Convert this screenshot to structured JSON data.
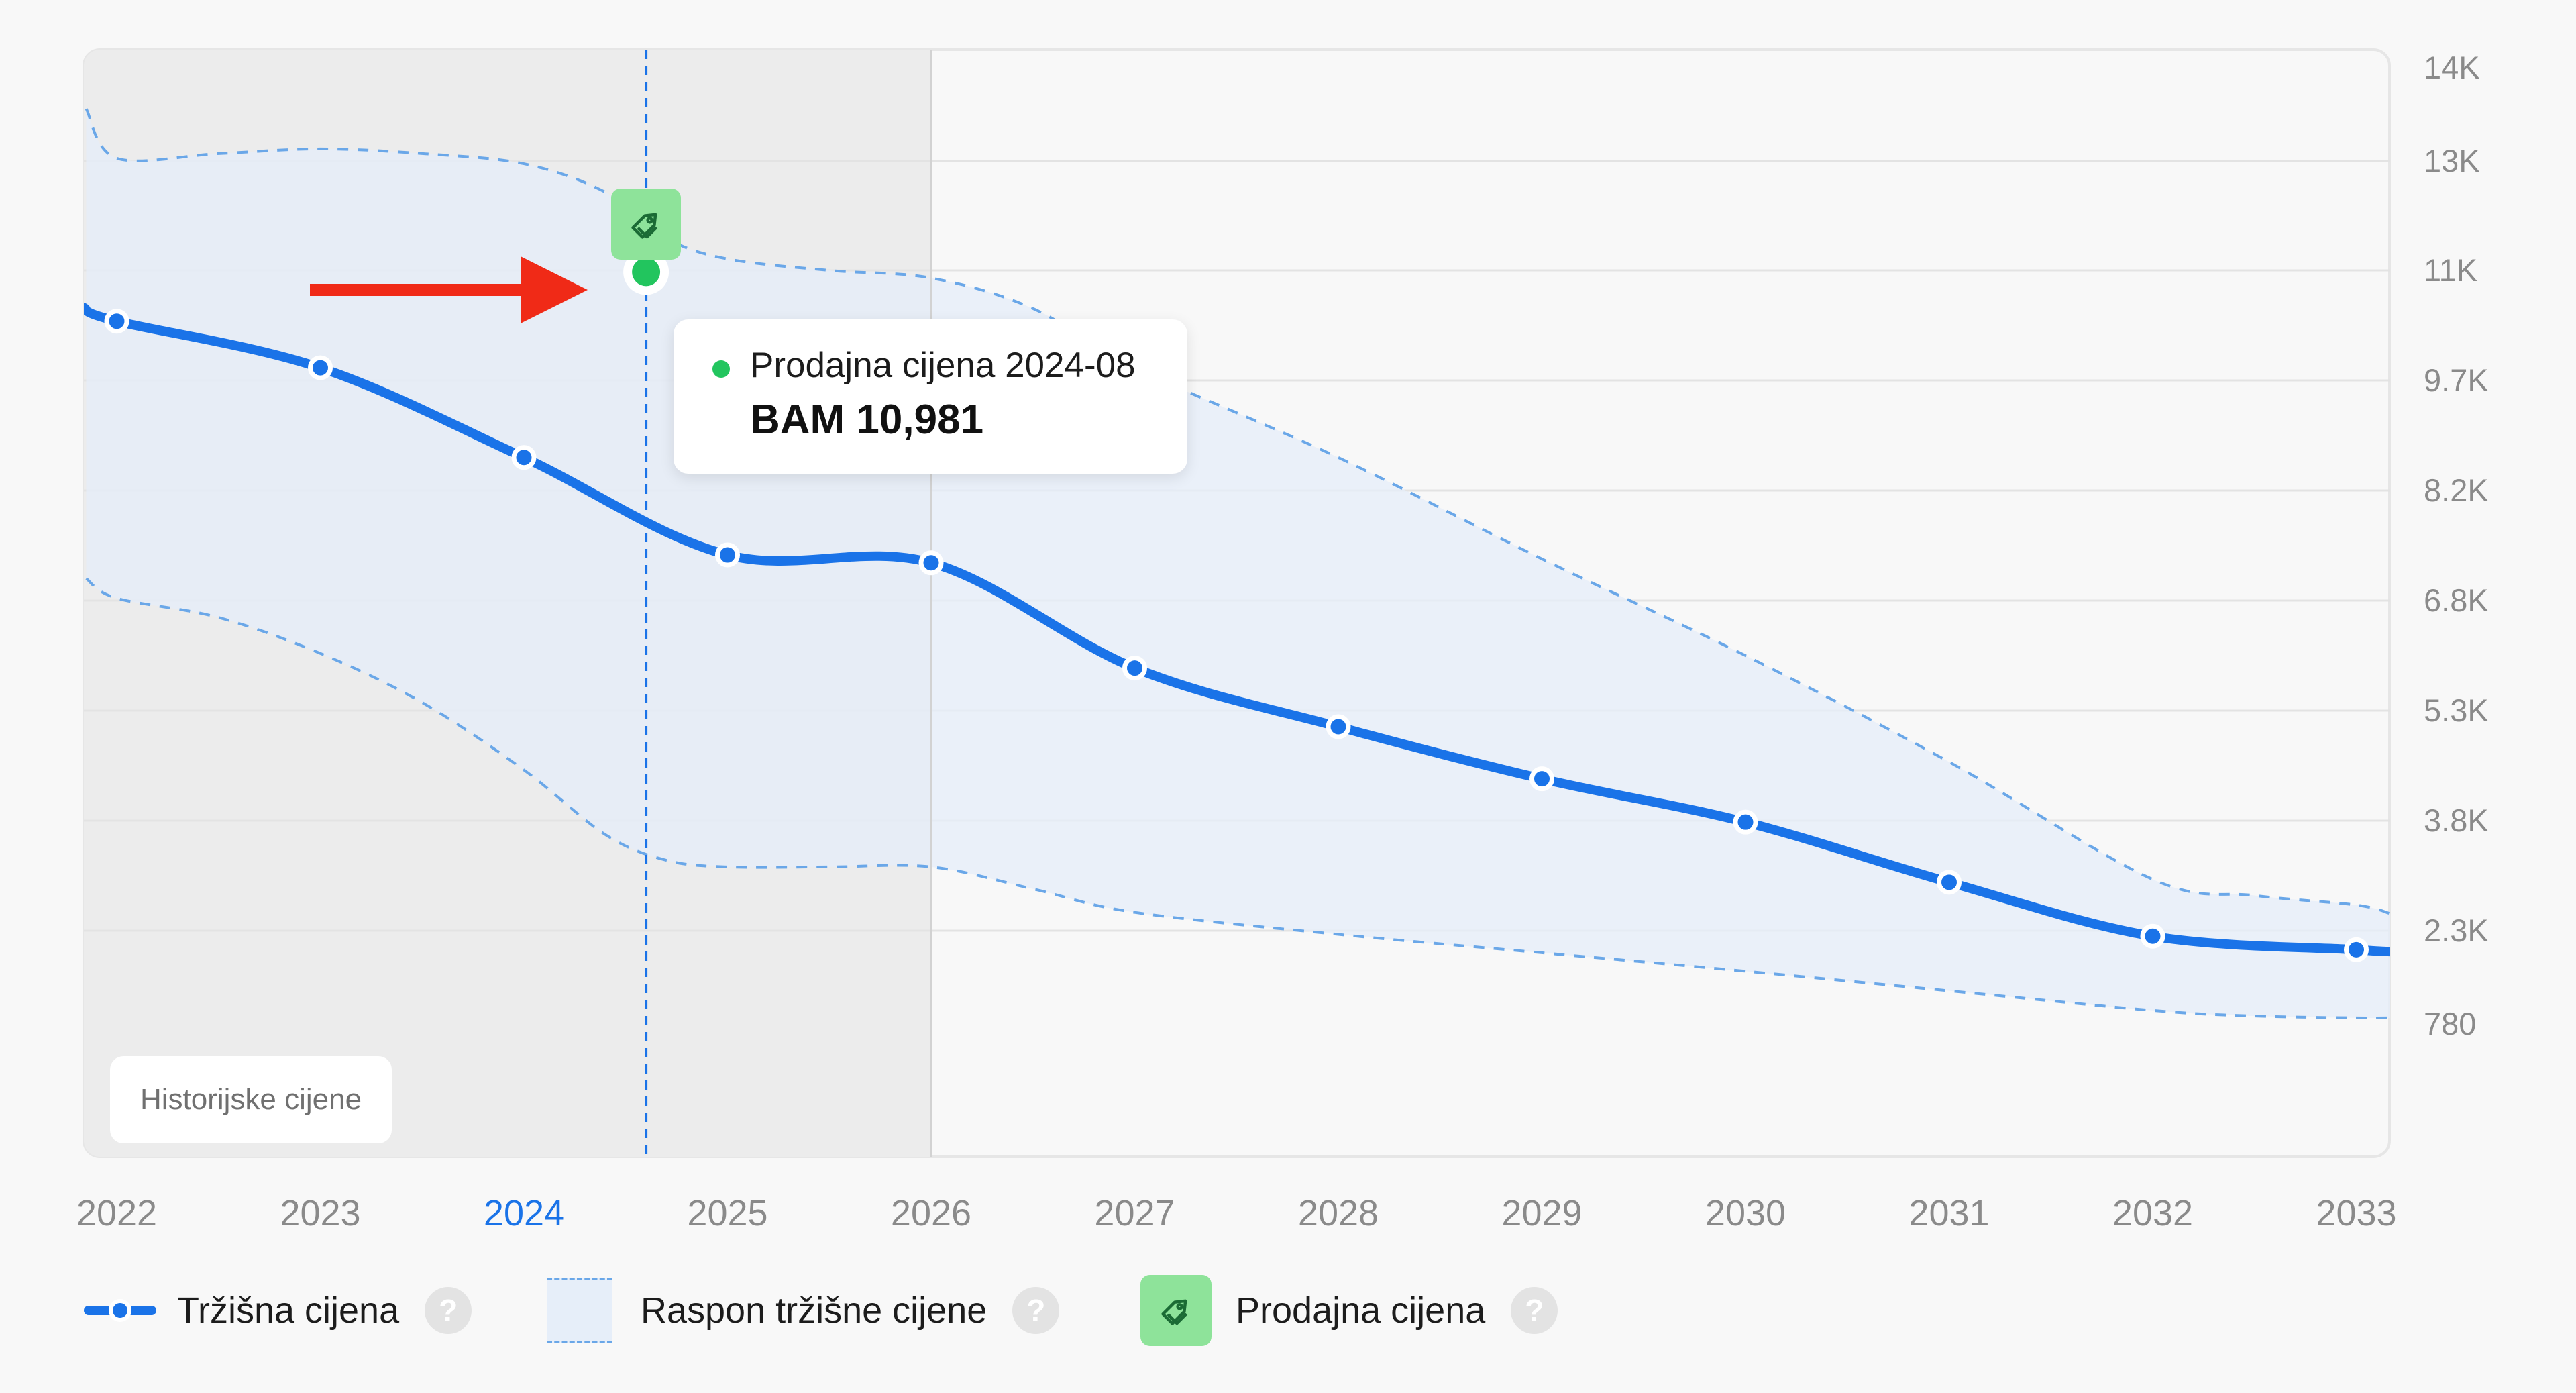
{
  "colors": {
    "line": "#1a73e8",
    "band_fill": "#e6eef9",
    "band_edge": "#6aa7e8",
    "history_shade": "#ececec",
    "sale_dot": "#22c55e",
    "tag_bg": "#8ee39a",
    "arrow": "#f02a17"
  },
  "chart_data": {
    "type": "line",
    "x_tick_labels": [
      "2022",
      "2023",
      "2024",
      "2025",
      "2026",
      "2027",
      "2028",
      "2029",
      "2030",
      "2031",
      "2032",
      "2033"
    ],
    "highlighted_x_label": "2024",
    "y_tick_labels": [
      "14K",
      "13K",
      "11K",
      "9.7K",
      "8.2K",
      "6.8K",
      "5.3K",
      "3.8K",
      "2.3K",
      "780"
    ],
    "series": [
      {
        "name": "Tržišna cijena",
        "x": [
          2022.0,
          2023.0,
          2024.0,
          2025.0,
          2026.0,
          2027.0,
          2028.0,
          2029.0,
          2030.0,
          2031.0,
          2032.0,
          2033.0
        ],
        "values": [
          10400,
          9850,
          8650,
          7380,
          7280,
          5880,
          5080,
          4370,
          3780,
          2960,
          2210,
          1990
        ]
      }
    ],
    "range_band": {
      "name": "Raspon tržišne cijene",
      "x": [
        2021.85,
        2022.0,
        2022.5,
        2023.0,
        2023.5,
        2024.0,
        2024.4,
        2024.7,
        2025.0,
        2025.5,
        2026.0,
        2026.5,
        2027.0,
        2028.0,
        2029.0,
        2030.0,
        2031.0,
        2032.0,
        2032.5,
        2033.0,
        2033.17
      ],
      "upper": [
        13560,
        13030,
        13080,
        13130,
        13080,
        12950,
        12430,
        11590,
        11210,
        11000,
        10910,
        10550,
        9850,
        8650,
        7330,
        6050,
        4600,
        3000,
        2780,
        2650,
        2530
      ],
      "lower": [
        7080,
        6830,
        6570,
        6080,
        5410,
        4490,
        3610,
        3260,
        3170,
        3170,
        3170,
        2870,
        2550,
        2240,
        1940,
        1640,
        1320,
        1000,
        910,
        880,
        880
      ]
    },
    "sale_point": {
      "name": "Prodajna cijena",
      "x": 2024.6,
      "value": 10981,
      "period": "2024-08"
    },
    "history_end_x": 2026,
    "grid": true,
    "legend_position": "bottom"
  },
  "tooltip": {
    "label": "Prodajna cijena 2024-08",
    "value": "BAM 10,981"
  },
  "history_badge": {
    "label": "Historijske cijene"
  },
  "legend": {
    "market_price": "Tržišna cijena",
    "range": "Raspon tržišne cijene",
    "sale_price": "Prodajna cijena",
    "help": "?"
  },
  "icons": {
    "tag": "price-tag-icon",
    "help": "question-mark-icon",
    "arrow": "right-arrow-icon"
  }
}
